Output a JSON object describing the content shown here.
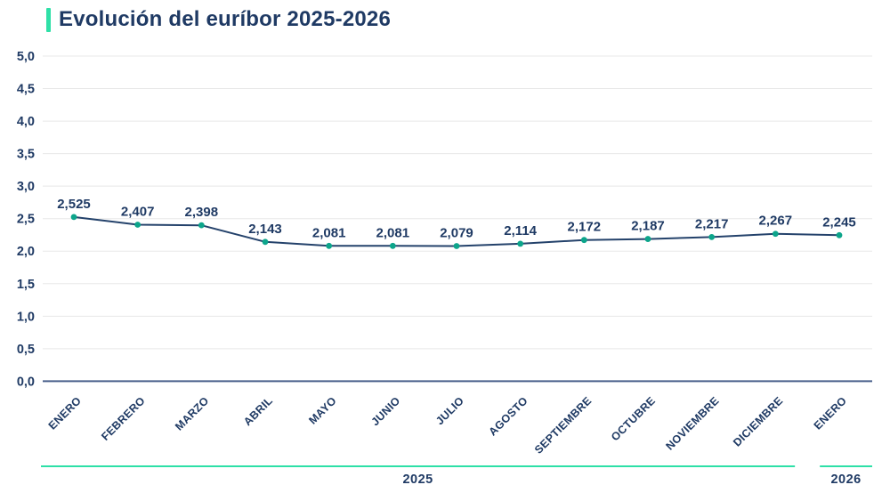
{
  "title": "Evolución del euríbor 2025-2026",
  "colors": {
    "navy": "#1f3a64",
    "line_navy": "#24426b",
    "teal_accent": "#2ee0a7",
    "dot_teal": "#0da58b",
    "gridline": "#e8e8e8",
    "axis_line": "#4a608c"
  },
  "chart_data": {
    "type": "line",
    "title": "Evolución del euríbor 2025-2026",
    "categories": [
      "ENERO",
      "FEBRERO",
      "MARZO",
      "ABRIL",
      "MAYO",
      "JUNIO",
      "JULIO",
      "AGOSTO",
      "SEPTIEMBRE",
      "OCTUBRE",
      "NOVIEMBRE",
      "DICIEMBRE",
      "ENERO"
    ],
    "values": [
      2.525,
      2.407,
      2.398,
      2.143,
      2.081,
      2.081,
      2.079,
      2.114,
      2.172,
      2.187,
      2.217,
      2.267,
      2.245
    ],
    "point_labels": [
      "2,525",
      "2,407",
      "2,398",
      "2,143",
      "2,081",
      "2,081",
      "2,079",
      "2,114",
      "2,172",
      "2,187",
      "2,217",
      "2,267",
      "2,245"
    ],
    "xlabel": "",
    "ylabel": "",
    "ylim": [
      0,
      5
    ],
    "y_tick_step": 0.5,
    "y_tick_labels": [
      "0,0",
      "0,5",
      "1,0",
      "1,5",
      "2,0",
      "2,5",
      "3,0",
      "3,5",
      "4,0",
      "4,5",
      "5,0"
    ],
    "grid": true,
    "legend": "none",
    "year_groups": [
      {
        "label": "2025",
        "from": 0,
        "to": 11
      },
      {
        "label": "2026",
        "from": 12,
        "to": 12
      }
    ]
  }
}
